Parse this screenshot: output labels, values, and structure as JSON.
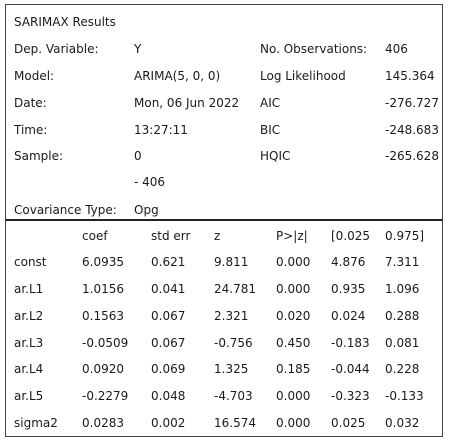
{
  "title": "SARIMAX Results",
  "summary": {
    "dep_variable": {
      "label": "Dep. Variable:",
      "value": "Y"
    },
    "model": {
      "label": "Model:",
      "value": "ARIMA(5, 0, 0)"
    },
    "date": {
      "label": "Date:",
      "value": "Mon, 06 Jun 2022"
    },
    "time": {
      "label": "Time:",
      "value": "13:27:11"
    },
    "sample": {
      "label": "Sample:",
      "value": "0",
      "value_cont": "- 406"
    },
    "covariance": {
      "label": "Covariance Type:",
      "value": "Opg"
    },
    "no_obs": {
      "label": "No. Observations:",
      "value": "406"
    },
    "log_likelihood": {
      "label": "Log Likelihood",
      "value": "145.364"
    },
    "aic": {
      "label": "AIC",
      "value": "-276.727"
    },
    "bic": {
      "label": "BIC",
      "value": "-248.683"
    },
    "hqic": {
      "label": "HQIC",
      "value": "-265.628"
    }
  },
  "coef_table": {
    "headers": [
      "",
      "coef",
      "std err",
      "z",
      "P>|z|",
      "[0.025",
      "0.975]"
    ],
    "rows": [
      [
        "const",
        "6.0935",
        "0.621",
        "9.811",
        "0.000",
        "4.876",
        "7.311"
      ],
      [
        "ar.L1",
        "1.0156",
        "0.041",
        "24.781",
        "0.000",
        "0.935",
        "1.096"
      ],
      [
        "ar.L2",
        "0.1563",
        "0.067",
        "2.321",
        "0.020",
        "0.024",
        "0.288"
      ],
      [
        "ar.L3",
        "-0.0509",
        "0.067",
        "-0.756",
        "0.450",
        "-0.183",
        "0.081"
      ],
      [
        "ar.L4",
        "0.0920",
        "0.069",
        "1.325",
        "0.185",
        "-0.044",
        "0.228"
      ],
      [
        "ar.L5",
        "-0.2279",
        "0.048",
        "-4.703",
        "0.000",
        "-0.323",
        "-0.133"
      ],
      [
        "sigma2",
        "0.0283",
        "0.002",
        "16.574",
        "0.000",
        "0.025",
        "0.032"
      ]
    ]
  }
}
